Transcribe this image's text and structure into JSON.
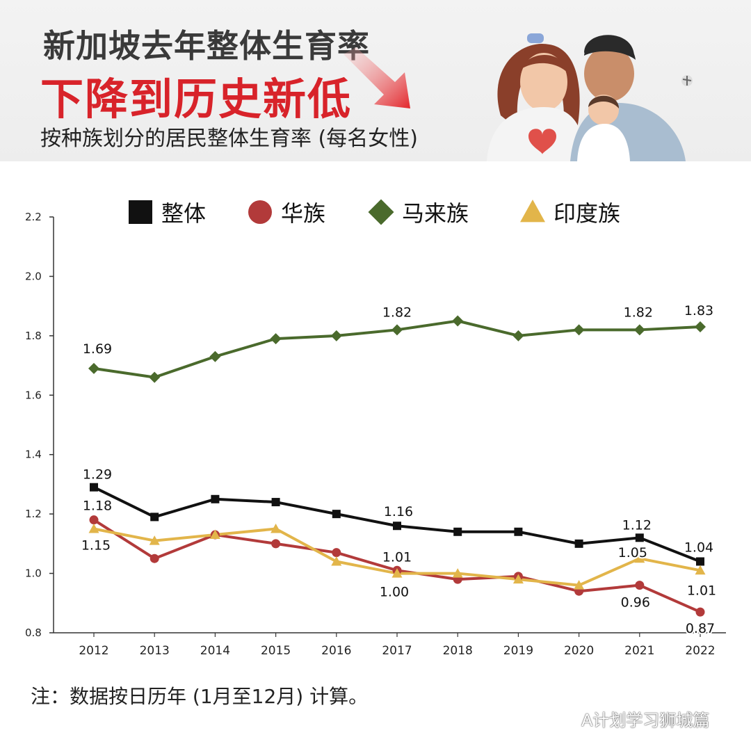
{
  "header": {
    "line1": "新加坡去年整体生育率",
    "line2": "下降到历史新低",
    "subtitle": "按种族划分的居民整体生育率 (每名女性)"
  },
  "note": "注：数据按日历年 (1月至12月) 计算。",
  "watermark": "A计划学习狮城篇",
  "colors": {
    "overall": "#111111",
    "chinese": "#b23a3a",
    "malay": "#4a6a2c",
    "indian": "#e2b54a",
    "title_red": "#d8232a"
  },
  "chart_data": {
    "type": "line",
    "categories": [
      "2012",
      "2013",
      "2014",
      "2015",
      "2016",
      "2017",
      "2018",
      "2019",
      "2020",
      "2021",
      "2022"
    ],
    "ylim": [
      0.8,
      2.2
    ],
    "yticks": [
      "0.8",
      "1.0",
      "1.2",
      "1.4",
      "1.6",
      "1.8",
      "2.0",
      "2.2"
    ],
    "legend_position": "top",
    "series": [
      {
        "name": "整体",
        "marker": "square",
        "values": [
          1.29,
          1.19,
          1.25,
          1.24,
          1.2,
          1.16,
          1.14,
          1.14,
          1.1,
          1.12,
          1.04
        ],
        "labels": [
          {
            "index": 0,
            "text": "1.29"
          },
          {
            "index": 5,
            "text": "1.16"
          },
          {
            "index": 9,
            "text": "1.12"
          },
          {
            "index": 10,
            "text": "1.04"
          }
        ]
      },
      {
        "name": "华族",
        "marker": "circle",
        "values": [
          1.18,
          1.05,
          1.13,
          1.1,
          1.07,
          1.01,
          0.98,
          0.99,
          0.94,
          0.96,
          0.87
        ],
        "labels": [
          {
            "index": 0,
            "text": "1.18"
          },
          {
            "index": 5,
            "text": "1.01"
          },
          {
            "index": 9,
            "text": "0.96"
          },
          {
            "index": 10,
            "text": "0.87"
          }
        ]
      },
      {
        "name": "马来族",
        "marker": "diamond",
        "values": [
          1.69,
          1.66,
          1.73,
          1.79,
          1.8,
          1.82,
          1.85,
          1.8,
          1.82,
          1.82,
          1.83
        ],
        "labels": [
          {
            "index": 0,
            "text": "1.69"
          },
          {
            "index": 5,
            "text": "1.82"
          },
          {
            "index": 9,
            "text": "1.82"
          },
          {
            "index": 10,
            "text": "1.83"
          }
        ]
      },
      {
        "name": "印度族",
        "marker": "triangle",
        "values": [
          1.15,
          1.11,
          1.13,
          1.15,
          1.04,
          1.0,
          1.0,
          0.98,
          0.96,
          1.05,
          1.01
        ],
        "labels": [
          {
            "index": 0,
            "text": "1.15"
          },
          {
            "index": 5,
            "text": "1.00"
          },
          {
            "index": 9,
            "text": "1.05"
          },
          {
            "index": 10,
            "text": "1.01"
          }
        ]
      }
    ]
  }
}
